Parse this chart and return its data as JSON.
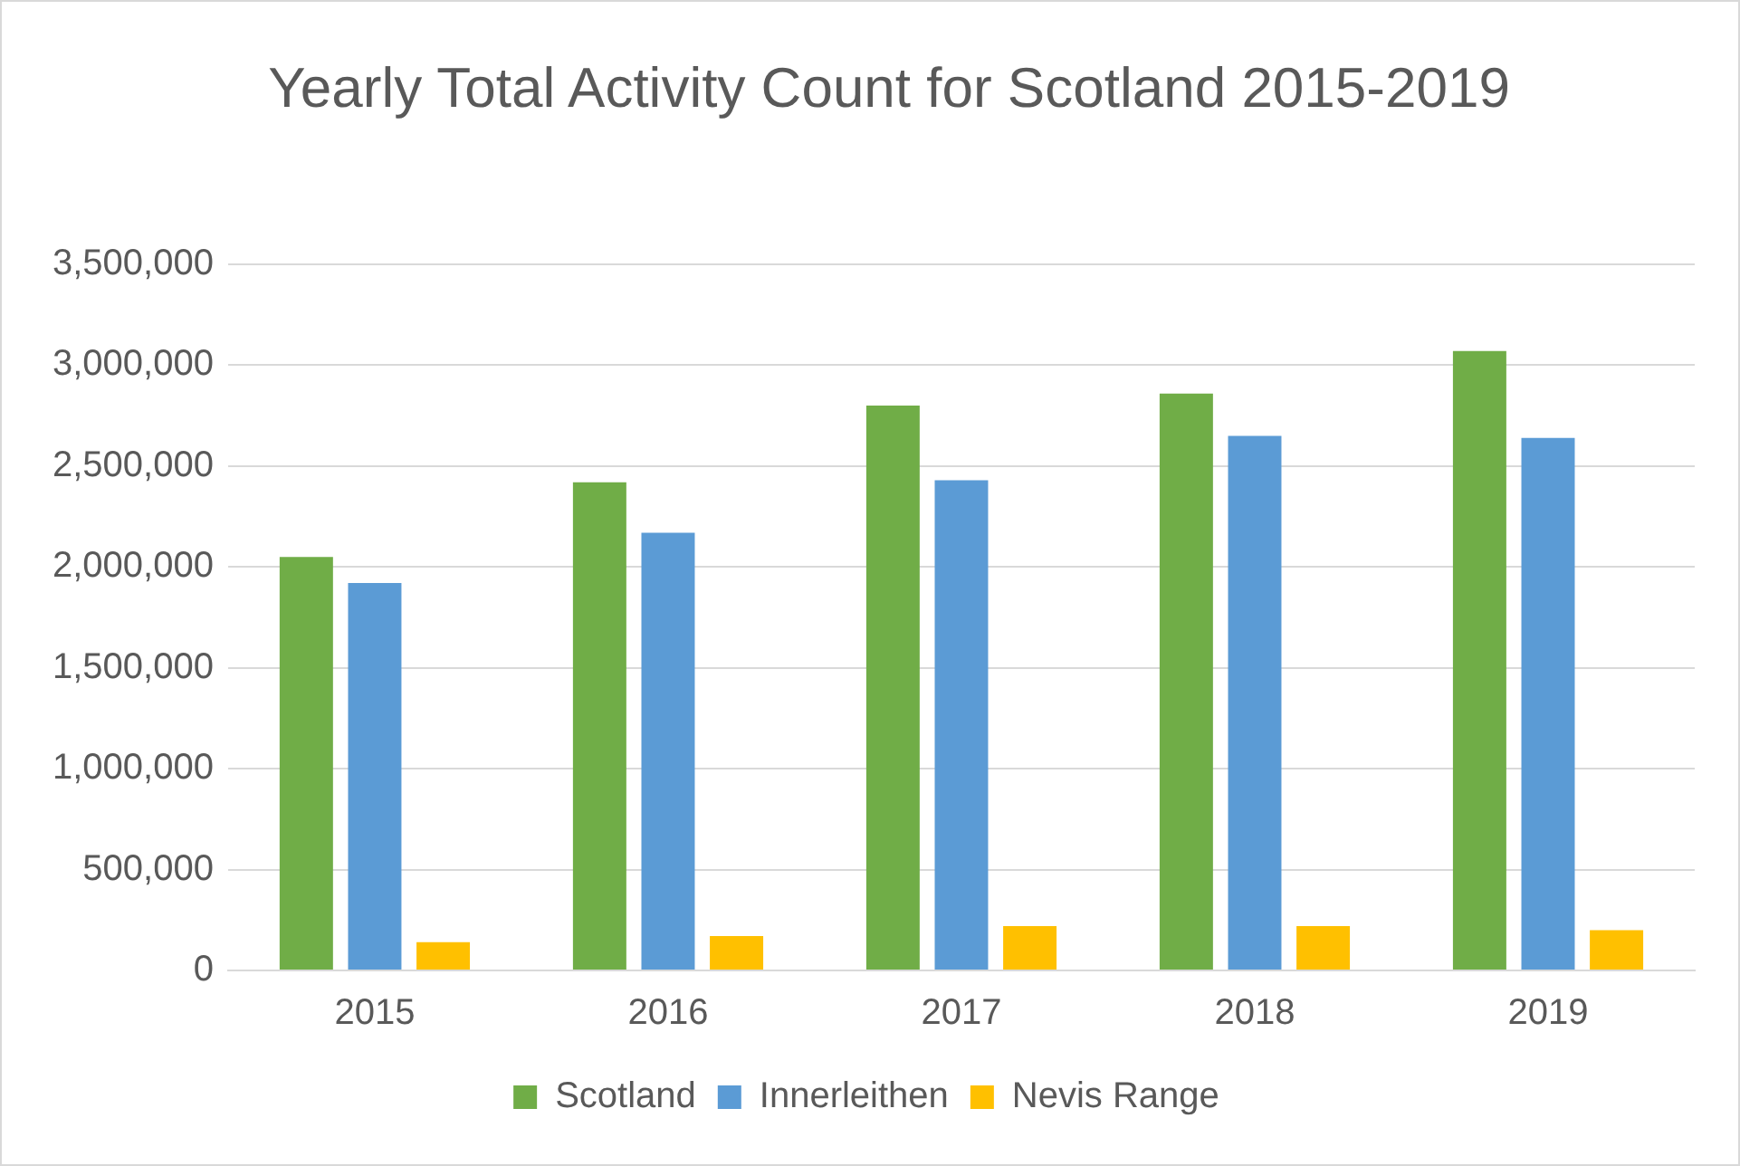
{
  "chart_data": {
    "type": "bar",
    "title": "Yearly Total Activity Count for Scotland 2015-2019",
    "categories": [
      "2015",
      "2016",
      "2017",
      "2018",
      "2019"
    ],
    "series": [
      {
        "name": "Scotland",
        "color": "#70ad47",
        "values": [
          2050000,
          2420000,
          2800000,
          2860000,
          3070000
        ]
      },
      {
        "name": "Innerleithen",
        "color": "#5b9bd5",
        "values": [
          1920000,
          2170000,
          2430000,
          2650000,
          2640000
        ]
      },
      {
        "name": "Nevis Range",
        "color": "#ffc000",
        "values": [
          140000,
          170000,
          220000,
          220000,
          200000
        ]
      }
    ],
    "ylim": [
      0,
      3500000
    ],
    "yticks": [
      0,
      {
        "value": 500000,
        "label": "500,000"
      },
      {
        "value": 1000000,
        "label": "1,000,000"
      },
      {
        "value": 1500000,
        "label": "1,500,000"
      },
      {
        "value": 2000000,
        "label": "2,000,000"
      },
      {
        "value": 2500000,
        "label": "2,500,000"
      },
      {
        "value": 3000000,
        "label": "3,000,000"
      },
      {
        "value": 3500000,
        "label": "3,500,000"
      }
    ],
    "grid": "y",
    "legend": "bottom"
  }
}
